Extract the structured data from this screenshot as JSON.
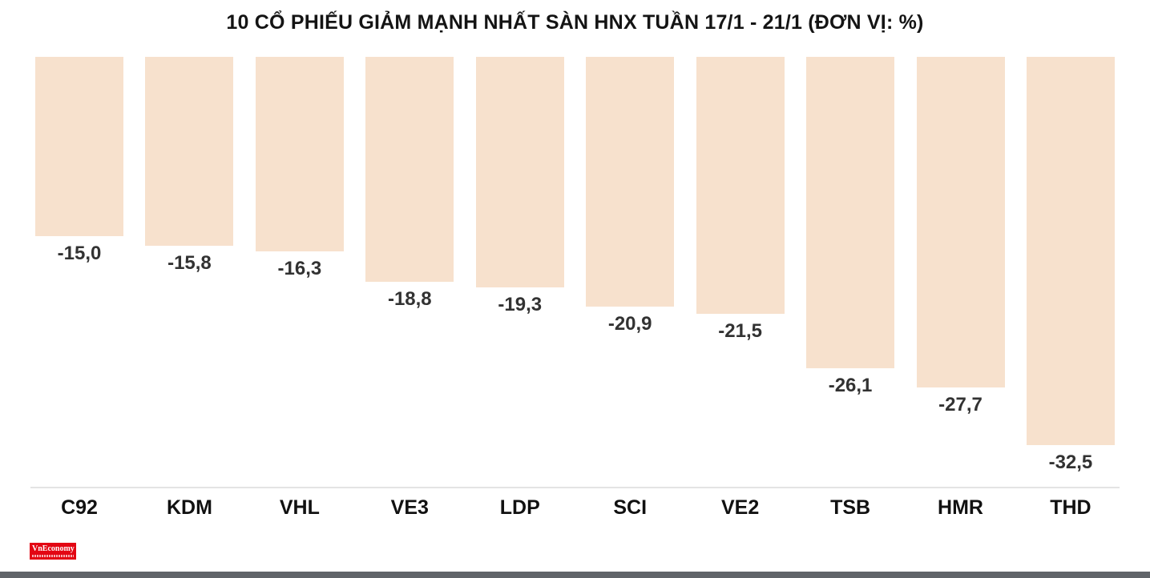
{
  "chart_data": {
    "type": "bar",
    "title": "10 CỔ PHIẾU GIẢM MẠNH NHẤT SÀN HNX TUẦN 17/1 - 21/1 (ĐƠN VỊ: %)",
    "categories": [
      "C92",
      "KDM",
      "VHL",
      "VE3",
      "LDP",
      "SCI",
      "VE2",
      "TSB",
      "HMR",
      "THD"
    ],
    "values": [
      -15.0,
      -15.8,
      -16.3,
      -18.8,
      -19.3,
      -20.9,
      -21.5,
      -26.1,
      -27.7,
      -32.5
    ],
    "value_labels": [
      "-15,0",
      "-15,8",
      "-16,3",
      "-18,8",
      "-19,3",
      "-20,9",
      "-21,5",
      "-26,1",
      "-27,7",
      "-32,5"
    ],
    "bar_color": "#f7e1cd",
    "ylim": [
      -32.5,
      0
    ],
    "xlabel": "",
    "ylabel": "",
    "grid": false,
    "legend": "none",
    "orientation": "columns-hanging-from-top-baseline"
  },
  "branding": {
    "logo_text": "VnEconomy",
    "logo_bg_color": "#e30613",
    "logo_text_color": "#ffffff"
  }
}
